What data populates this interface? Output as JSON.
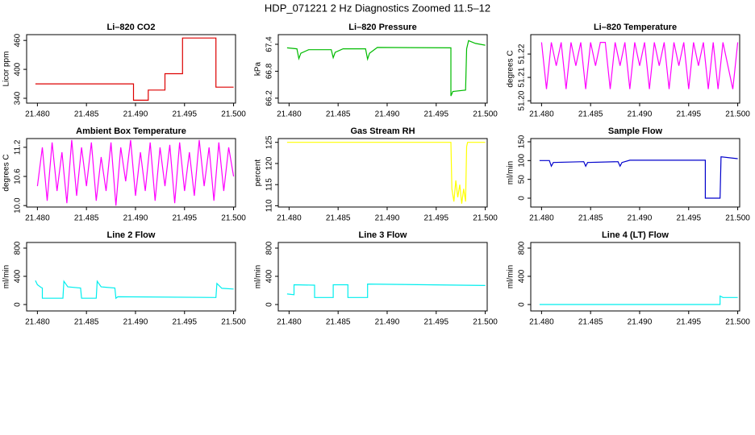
{
  "title": "HDP_071221  2 Hz Diagnostics Zoomed 11.5–12",
  "chart_data": [
    {
      "type": "line",
      "title": "Li–820 CO2",
      "ylabel": "Licor ppm",
      "color": "#dd0000",
      "x": [
        21.4798,
        21.4898,
        21.4898,
        21.4913,
        21.4913,
        21.493,
        21.493,
        21.4948,
        21.4948,
        21.4982,
        21.4982,
        21.5
      ],
      "values": [
        370,
        370,
        336,
        336,
        357,
        357,
        391,
        391,
        465,
        465,
        363,
        363
      ],
      "xlim": [
        21.4789,
        21.5002
      ],
      "xticks": [
        {
          "value": 21.48,
          "label": "21.480"
        },
        21.485,
        {
          "value": 21.49,
          "label": "21.490"
        },
        21.495,
        {
          "value": 21.5,
          "label": "21.500"
        }
      ],
      "ylim": [
        330,
        472
      ],
      "yticks": [
        340,
        400,
        460
      ]
    },
    {
      "type": "line",
      "title": "Li–820 Pressure",
      "ylabel": "kPa",
      "color": "#00bb00",
      "x": [
        21.4798,
        21.4808,
        21.481,
        21.4812,
        21.482,
        21.4843,
        21.4845,
        21.4847,
        21.4855,
        21.4878,
        21.488,
        21.4882,
        21.489,
        21.4965,
        21.4965,
        21.4967,
        21.498,
        21.4981,
        21.4983,
        21.499,
        21.5
      ],
      "values": [
        67.32,
        67.3,
        67.08,
        67.2,
        67.28,
        67.28,
        67.1,
        67.22,
        67.3,
        67.3,
        67.07,
        67.2,
        67.33,
        67.32,
        66.25,
        66.35,
        66.38,
        67.3,
        67.48,
        67.42,
        67.38
      ],
      "xlim": [
        21.4789,
        21.5002
      ],
      "xticks": [
        {
          "value": 21.48,
          "label": "21.480"
        },
        21.485,
        {
          "value": 21.49,
          "label": "21.490"
        },
        21.495,
        {
          "value": 21.5,
          "label": "21.500"
        }
      ],
      "ylim": [
        66.09,
        67.615
      ],
      "yticks": [
        66.2,
        66.8,
        67.4
      ]
    },
    {
      "type": "line",
      "title": "Li–820 Temperature",
      "ylabel": "degrees C",
      "color": "#ff00ff",
      "x": [
        21.48,
        21.4805,
        21.481,
        21.4815,
        21.482,
        21.4825,
        21.483,
        21.4835,
        21.484,
        21.4845,
        21.485,
        21.4855,
        21.486,
        21.4865,
        21.487,
        21.4875,
        21.488,
        21.4885,
        21.489,
        21.4895,
        21.49,
        21.4905,
        21.491,
        21.4915,
        21.492,
        21.4925,
        21.493,
        21.4935,
        21.494,
        21.4945,
        21.495,
        21.4955,
        21.496,
        21.4965,
        21.497,
        21.4975,
        21.498,
        21.4985,
        21.499,
        21.4995,
        21.5
      ],
      "values": [
        51.225,
        51.205,
        51.225,
        51.215,
        51.225,
        51.205,
        51.225,
        51.215,
        51.225,
        51.205,
        51.225,
        51.215,
        51.225,
        51.225,
        51.205,
        51.225,
        51.215,
        51.225,
        51.205,
        51.225,
        51.215,
        51.225,
        51.205,
        51.225,
        51.215,
        51.225,
        51.205,
        51.225,
        51.215,
        51.225,
        51.205,
        51.225,
        51.215,
        51.225,
        51.205,
        51.225,
        51.205,
        51.225,
        51.215,
        51.205,
        51.225
      ],
      "xlim": [
        21.4789,
        21.5002
      ],
      "xticks": [
        {
          "value": 21.48,
          "label": "21.480"
        },
        21.485,
        {
          "value": 21.49,
          "label": "21.490"
        },
        21.495,
        {
          "value": 21.5,
          "label": "21.500"
        }
      ],
      "ylim": [
        51.199,
        51.2283
      ],
      "yticks": [
        {
          "value": 51.2,
          "label": "51.20"
        },
        51.21,
        51.22
      ]
    },
    {
      "type": "line",
      "title": "Ambient Box Temperature",
      "ylabel": "degrees C",
      "color": "#ff00ff",
      "x": [
        21.48,
        21.4805,
        21.481,
        21.4815,
        21.482,
        21.4825,
        21.483,
        21.4835,
        21.484,
        21.4845,
        21.485,
        21.4855,
        21.486,
        21.4865,
        21.487,
        21.4875,
        21.488,
        21.4885,
        21.489,
        21.4895,
        21.49,
        21.4905,
        21.491,
        21.4915,
        21.492,
        21.4925,
        21.493,
        21.4935,
        21.494,
        21.4945,
        21.495,
        21.4955,
        21.496,
        21.4965,
        21.497,
        21.4975,
        21.498,
        21.4985,
        21.499,
        21.4995,
        21.5
      ],
      "values": [
        10.4,
        11.2,
        10.1,
        11.3,
        10.3,
        11.1,
        10.05,
        11.35,
        10.2,
        11.2,
        10.4,
        11.3,
        10.1,
        11.0,
        10.3,
        11.3,
        10.0,
        11.2,
        10.5,
        11.35,
        10.2,
        11.1,
        10.3,
        11.3,
        10.1,
        11.2,
        10.4,
        11.25,
        10.05,
        11.3,
        10.3,
        11.1,
        10.2,
        11.35,
        10.4,
        11.2,
        10.1,
        11.3,
        10.3,
        11.2,
        10.6
      ],
      "xlim": [
        21.4789,
        21.5002
      ],
      "xticks": [
        {
          "value": 21.48,
          "label": "21.480"
        },
        21.485,
        {
          "value": 21.49,
          "label": "21.490"
        },
        21.495,
        {
          "value": 21.5,
          "label": "21.500"
        }
      ],
      "ylim": [
        9.97,
        11.38
      ],
      "yticks": [
        {
          "value": 10.0,
          "label": "10.0"
        },
        10.6,
        11.2
      ]
    },
    {
      "type": "line",
      "title": "Gas Stream RH",
      "ylabel": "percent",
      "color": "#ffff00",
      "x": [
        21.4798,
        21.4965,
        21.4966,
        21.4968,
        21.497,
        21.4972,
        21.4974,
        21.4976,
        21.4978,
        21.498,
        21.4981,
        21.4982,
        21.4983,
        21.5
      ],
      "values": [
        125,
        125,
        114,
        111,
        116,
        112,
        115,
        110.5,
        114,
        111,
        124,
        125,
        125,
        125
      ],
      "xlim": [
        21.4789,
        21.5002
      ],
      "xticks": [
        {
          "value": 21.48,
          "label": "21.480"
        },
        21.485,
        {
          "value": 21.49,
          "label": "21.490"
        },
        21.495,
        {
          "value": 21.5,
          "label": "21.500"
        }
      ],
      "ylim": [
        109.7,
        125.9
      ],
      "yticks": [
        110,
        115,
        120,
        125
      ]
    },
    {
      "type": "line",
      "title": "Sample Flow",
      "ylabel": "ml/min",
      "color": "#0000cc",
      "x": [
        21.4798,
        21.4808,
        21.481,
        21.4812,
        21.4843,
        21.4845,
        21.4847,
        21.4878,
        21.488,
        21.4882,
        21.489,
        21.4967,
        21.4967,
        21.4982,
        21.4983,
        21.5
      ],
      "values": [
        100,
        100,
        85,
        95,
        97,
        85,
        95,
        97,
        85,
        95,
        101,
        101,
        0,
        0,
        110,
        105
      ],
      "xlim": [
        21.4789,
        21.5002
      ],
      "xticks": [
        {
          "value": 21.48,
          "label": "21.480"
        },
        21.485,
        {
          "value": 21.49,
          "label": "21.490"
        },
        21.495,
        {
          "value": 21.5,
          "label": "21.500"
        }
      ],
      "ylim": [
        -23.6,
        158.6
      ],
      "yticks": [
        0,
        50,
        100,
        150
      ]
    },
    {
      "type": "line",
      "title": "Line 2 Flow",
      "ylabel": "ml/min",
      "color": "#00eeee",
      "x": [
        21.4798,
        21.48,
        21.4804,
        21.4805,
        21.4805,
        21.4826,
        21.4827,
        21.4831,
        21.4844,
        21.4845,
        21.486,
        21.4861,
        21.4865,
        21.4879,
        21.488,
        21.4882,
        21.4982,
        21.4983,
        21.4988,
        21.5
      ],
      "values": [
        340,
        280,
        240,
        235,
        90,
        90,
        330,
        250,
        235,
        90,
        90,
        330,
        250,
        235,
        90,
        110,
        100,
        300,
        230,
        220
      ],
      "xlim": [
        21.4789,
        21.5002
      ],
      "xticks": [
        {
          "value": 21.48,
          "label": "21.480"
        },
        21.485,
        {
          "value": 21.49,
          "label": "21.490"
        },
        21.495,
        {
          "value": 21.5,
          "label": "21.500"
        }
      ],
      "ylim": [
        -91,
        880
      ],
      "yticks": [
        0,
        400,
        800
      ]
    },
    {
      "type": "line",
      "title": "Line 3 Flow",
      "ylabel": "ml/min",
      "color": "#00eeee",
      "x": [
        21.4798,
        21.4805,
        21.4805,
        21.4826,
        21.4826,
        21.4845,
        21.4845,
        21.486,
        21.486,
        21.488,
        21.488,
        21.5
      ],
      "values": [
        150,
        140,
        280,
        275,
        100,
        100,
        280,
        280,
        100,
        100,
        290,
        270
      ],
      "xlim": [
        21.4789,
        21.5002
      ],
      "xticks": [
        {
          "value": 21.48,
          "label": "21.480"
        },
        21.485,
        {
          "value": 21.49,
          "label": "21.490"
        },
        21.495,
        {
          "value": 21.5,
          "label": "21.500"
        }
      ],
      "ylim": [
        -91,
        880
      ],
      "yticks": [
        0,
        400,
        800
      ]
    },
    {
      "type": "line",
      "title": "Line 4 (LT) Flow",
      "ylabel": "ml/min",
      "color": "#00eeee",
      "x": [
        21.4798,
        21.4982,
        21.4982,
        21.4985,
        21.5
      ],
      "values": [
        0,
        0,
        120,
        100,
        100
      ],
      "xlim": [
        21.4789,
        21.5002
      ],
      "xticks": [
        {
          "value": 21.48,
          "label": "21.480"
        },
        21.485,
        {
          "value": 21.49,
          "label": "21.490"
        },
        21.495,
        {
          "value": 21.5,
          "label": "21.500"
        }
      ],
      "ylim": [
        -91,
        880
      ],
      "yticks": [
        0,
        400,
        800
      ]
    }
  ]
}
